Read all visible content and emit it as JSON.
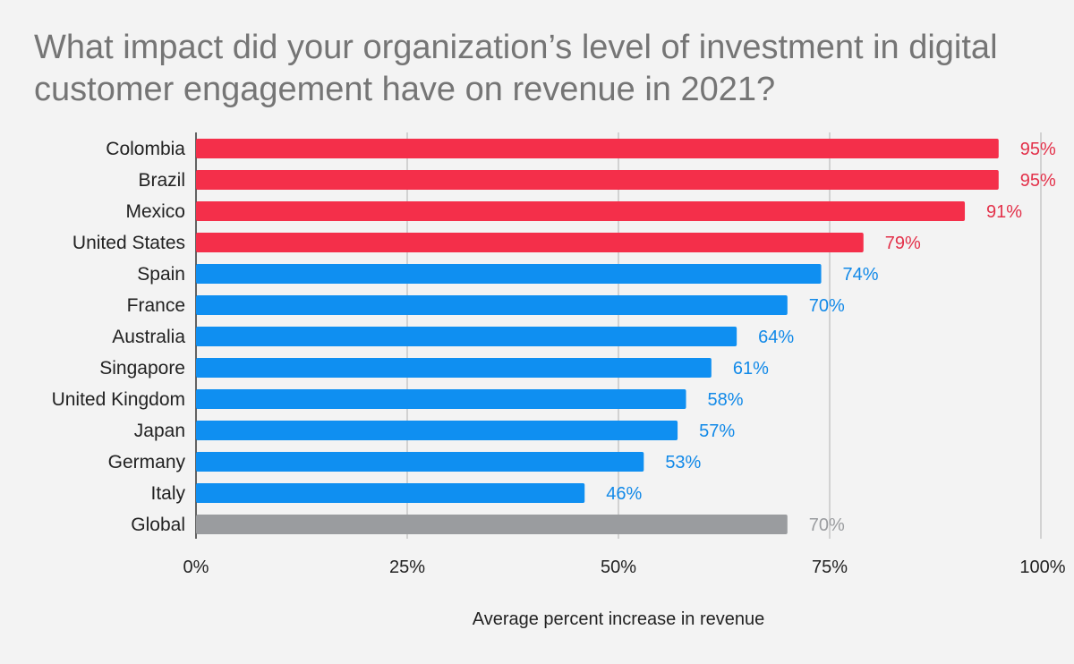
{
  "chart_data": {
    "type": "bar",
    "orientation": "horizontal",
    "title": "What impact did your organization’s level of investment in digital customer engagement have on revenue in 2021?",
    "xlabel": "Average percent increase in revenue",
    "ylabel": "",
    "xlim": [
      0,
      100
    ],
    "grid": true,
    "legend": "none",
    "x_ticks": [
      "0%",
      "25%",
      "50%",
      "75%",
      "100%"
    ],
    "categories": [
      "Colombia",
      "Brazil",
      "Mexico",
      "United States",
      "Spain",
      "France",
      "Australia",
      "Singapore",
      "United Kingdom",
      "Japan",
      "Germany",
      "Italy",
      "Global"
    ],
    "values": [
      95,
      95,
      91,
      79,
      74,
      70,
      64,
      61,
      58,
      57,
      53,
      46,
      70
    ],
    "value_labels": [
      "95%",
      "95%",
      "91%",
      "79%",
      "74%",
      "70%",
      "64%",
      "61%",
      "58%",
      "57%",
      "53%",
      "46%",
      "70%"
    ],
    "bar_colors": [
      "#f42f4a",
      "#f42f4a",
      "#f42f4a",
      "#f42f4a",
      "#0f8ff1",
      "#0f8ff1",
      "#0f8ff1",
      "#0f8ff1",
      "#0f8ff1",
      "#0f8ff1",
      "#0f8ff1",
      "#0f8ff1",
      "#9a9c9f"
    ],
    "label_colors": [
      "#e3314a",
      "#e3314a",
      "#e3314a",
      "#e3314a",
      "#1189e8",
      "#1189e8",
      "#1189e8",
      "#1189e8",
      "#1189e8",
      "#1189e8",
      "#1189e8",
      "#1189e8",
      "#9a9c9f"
    ],
    "colors": {
      "background": "#f3f3f3",
      "title": "#757575",
      "gridline": "#c8c8c8",
      "text": "#222222"
    }
  }
}
